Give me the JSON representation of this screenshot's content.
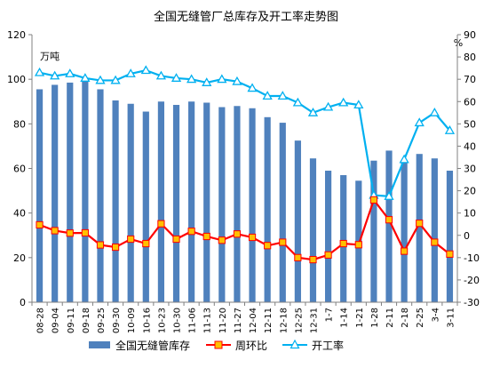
{
  "chart_data": {
    "type": "bar+line",
    "title": "全国无缝管厂总库存及开工率走势图",
    "left_unit": "万吨",
    "right_unit": "%",
    "categories": [
      "08-28",
      "09-04",
      "09-11",
      "09-18",
      "09-25",
      "09-30",
      "10-09",
      "10-16",
      "10-23",
      "10-30",
      "11-06",
      "11-13",
      "11-20",
      "11-27",
      "12-04",
      "12-11",
      "12-18",
      "12-25",
      "12-31",
      "1-7",
      "1-14",
      "1-21",
      "1-28",
      "2-11",
      "2-18",
      "2-25",
      "3-4",
      "3-11"
    ],
    "left_axis": {
      "min": 0,
      "max": 120,
      "ticks": [
        0,
        20,
        40,
        60,
        80,
        100,
        120
      ]
    },
    "right_axis": {
      "min": -30,
      "max": 90,
      "ticks": [
        -30,
        -20,
        -10,
        0,
        10,
        20,
        30,
        40,
        50,
        60,
        70,
        80,
        90
      ]
    },
    "grid": false,
    "legend_position": "bottom",
    "series": [
      {
        "name": "全国无缝管库存",
        "type": "bar",
        "axis": "left",
        "color": "#4f81bd",
        "values": [
          95.5,
          97.5,
          98.5,
          99.5,
          95.5,
          90.5,
          89,
          85.5,
          90,
          88.5,
          90,
          89.5,
          87.5,
          88,
          87,
          83,
          80.5,
          72.5,
          64.5,
          59,
          57,
          54.5,
          63.5,
          68,
          63,
          66.5,
          64.5,
          59
        ]
      },
      {
        "name": "周环比",
        "type": "line",
        "axis": "right",
        "color": "#ff0000",
        "marker_color": "#ffc000",
        "values": [
          4.7,
          2.1,
          1.0,
          1.1,
          -4.3,
          -5.3,
          -1.7,
          -3.7,
          5.2,
          -1.7,
          1.8,
          -0.5,
          -2.2,
          0.6,
          -0.9,
          -4.6,
          -3.1,
          -10.0,
          -10.9,
          -8.8,
          -3.7,
          -4.2,
          15.9,
          7.0,
          -7.1,
          5.4,
          -3.1,
          -8.4
        ]
      },
      {
        "name": "开工率",
        "type": "line",
        "axis": "right",
        "color": "#00b0f0",
        "values": [
          73,
          71.5,
          72.5,
          70.5,
          69.5,
          69.5,
          72.5,
          74,
          71.5,
          70.5,
          70,
          68.5,
          70,
          69,
          66,
          62.5,
          62.5,
          59.5,
          55,
          57.5,
          59.5,
          58.5,
          18,
          17.5,
          34,
          50.5,
          55,
          47
        ]
      }
    ]
  }
}
